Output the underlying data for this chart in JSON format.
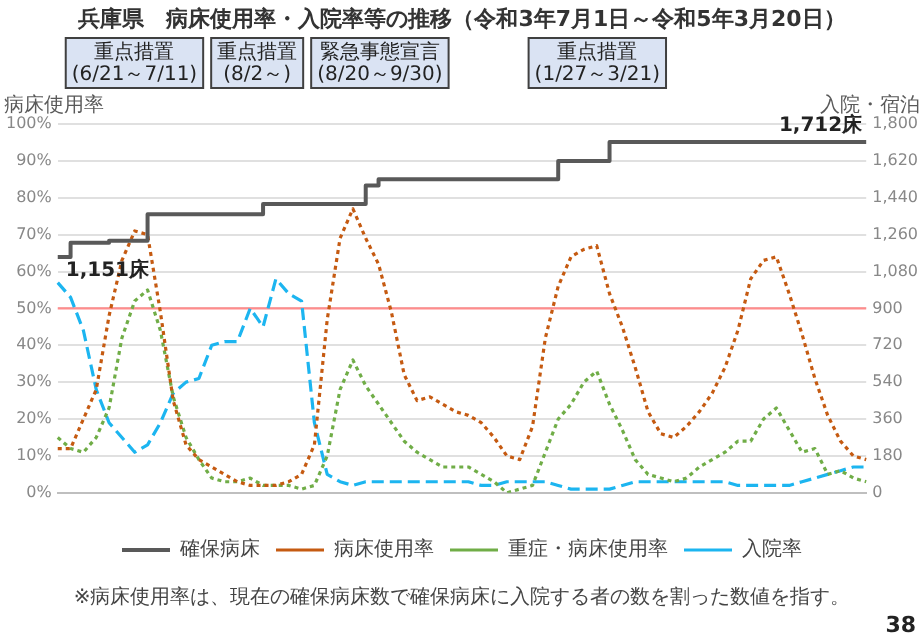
{
  "chart_data": {
    "type": "line",
    "title": "兵庫県　病床使用率・入院率等の推移（令和3年7月1日～令和5年3月20日）",
    "ylabel": "病床使用率",
    "y2label": "入院・宿泊",
    "categories": [
      null,
      null,
      null,
      null,
      null,
      null,
      null,
      null,
      null,
      null,
      null,
      null,
      null,
      null,
      null,
      null,
      null,
      null,
      null,
      null,
      null,
      null,
      null,
      null,
      null,
      null,
      null,
      null,
      null,
      null,
      null,
      null,
      null,
      null,
      null,
      null,
      null,
      null,
      null,
      null,
      null,
      null,
      null,
      null,
      null,
      null,
      null,
      null,
      null,
      null,
      null,
      null,
      null,
      null,
      null,
      null,
      null,
      null,
      null,
      null,
      null,
      null,
      null,
      null
    ],
    "ylim": [
      0,
      100
    ],
    "yticks": [
      {
        "value": 0,
        "label": "0%"
      },
      {
        "value": 10,
        "label": "10%"
      },
      {
        "value": 20,
        "label": "20%"
      },
      {
        "value": 30,
        "label": "30%"
      },
      {
        "value": 40,
        "label": "40%"
      },
      {
        "value": 50,
        "label": "50%"
      },
      {
        "value": 60,
        "label": "60%"
      },
      {
        "value": 70,
        "label": "70%"
      },
      {
        "value": 80,
        "label": "80%"
      },
      {
        "value": 90,
        "label": "90%"
      },
      {
        "value": 100,
        "label": "100%"
      }
    ],
    "y2lim": [
      0,
      1800
    ],
    "y2ticks": [
      0,
      180,
      360,
      540,
      720,
      900,
      {
        "value": 1080,
        "label": "1,080"
      },
      {
        "value": 1260,
        "label": "1,260"
      },
      {
        "value": 1440,
        "label": "1,440"
      },
      {
        "value": 1620,
        "label": "1,620"
      },
      {
        "value": 1800,
        "label": "1,800"
      }
    ],
    "grid": "y",
    "legend": "bottom",
    "marker": "none",
    "ref_lines": [
      {
        "axis": "y",
        "value": 50,
        "color": "#ff8c8c"
      }
    ],
    "annotations": [
      "重点措置 (6/21～7/11)",
      "重点措置 (8/2～)",
      "緊急事態宣言 (8/20～9/30)",
      "重点措置 (1/27～3/21)",
      "※病床使用率は、現在の確保病床数で確保病床に入院する者の数を割った数値を指す。",
      "38"
    ],
    "series": [
      {
        "name": "確保病床",
        "type": "step",
        "axis": "y2",
        "color": "#595959",
        "line_style": "solid",
        "values": [
          1151,
          1220,
          1220,
          1220,
          1230,
          1230,
          1230,
          1360,
          1360,
          1360,
          1360,
          1360,
          1360,
          1360,
          1360,
          1360,
          1410,
          1410,
          1410,
          1410,
          1410,
          1410,
          1410,
          1410,
          1500,
          1530,
          1530,
          1530,
          1530,
          1530,
          1530,
          1530,
          1530,
          1530,
          1530,
          1530,
          1530,
          1530,
          1530,
          1620,
          1620,
          1620,
          1620,
          1712,
          1712,
          1712,
          1712,
          1712,
          1712,
          1712,
          1712,
          1712,
          1712,
          1712,
          1712,
          1712,
          1712,
          1712,
          1712,
          1712,
          1712,
          1712,
          1712,
          1712
        ],
        "value_labels": [
          "1,151床",
          null,
          null,
          null,
          null,
          null,
          null,
          null,
          null,
          null,
          null,
          null,
          null,
          null,
          null,
          null,
          null,
          null,
          null,
          null,
          null,
          null,
          null,
          null,
          null,
          null,
          null,
          null,
          null,
          null,
          null,
          null,
          null,
          null,
          null,
          null,
          null,
          null,
          null,
          null,
          null,
          null,
          null,
          null,
          null,
          null,
          null,
          null,
          null,
          null,
          null,
          null,
          null,
          null,
          null,
          null,
          null,
          null,
          null,
          null,
          null,
          null,
          null,
          "1,712床"
        ]
      },
      {
        "name": "病床使用率",
        "color": "#c55a11",
        "line_style": "dotted",
        "values": [
          12,
          12,
          20,
          28,
          48,
          63,
          71,
          70,
          49,
          25,
          13,
          9,
          7,
          5,
          3,
          2,
          2,
          2,
          3,
          5,
          13,
          47,
          69,
          77,
          69,
          62,
          49,
          32,
          25,
          26,
          24,
          22,
          21,
          19,
          15,
          10,
          9,
          18,
          42,
          56,
          64,
          66,
          67,
          54,
          45,
          34,
          22,
          16,
          15,
          18,
          22,
          27,
          34,
          44,
          58,
          63,
          64,
          54,
          43,
          31,
          21,
          14,
          10,
          9
        ]
      },
      {
        "name": "重症・病床使用率",
        "color": "#70ad47",
        "line_style": "dotted",
        "values": [
          15,
          12,
          11,
          15,
          23,
          42,
          52,
          55,
          44,
          26,
          15,
          9,
          4,
          3,
          3,
          4,
          2,
          2,
          2,
          1,
          2,
          10,
          28,
          36,
          29,
          24,
          19,
          14,
          11,
          9,
          7,
          7,
          7,
          5,
          3,
          0,
          1,
          2,
          11,
          20,
          24,
          30,
          33,
          24,
          17,
          9,
          5,
          4,
          3,
          4,
          7,
          9,
          11,
          14,
          14,
          20,
          23,
          17,
          11,
          12,
          5,
          6,
          4,
          3
        ]
      },
      {
        "name": "入院率",
        "color": "#1cb5f0",
        "line_style": "dashed",
        "values": [
          57,
          53,
          44,
          28,
          19,
          15,
          11,
          13,
          19,
          27,
          30,
          31,
          40,
          41,
          41,
          50,
          45,
          58,
          54,
          52,
          19,
          5,
          3,
          2,
          3,
          3,
          3,
          3,
          3,
          3,
          3,
          3,
          3,
          2,
          2,
          3,
          3,
          3,
          3,
          2,
          1,
          1,
          1,
          1,
          2,
          3,
          3,
          3,
          3,
          3,
          3,
          3,
          3,
          2,
          2,
          2,
          2,
          2,
          3,
          4,
          5,
          6,
          7,
          7
        ]
      }
    ]
  }
}
